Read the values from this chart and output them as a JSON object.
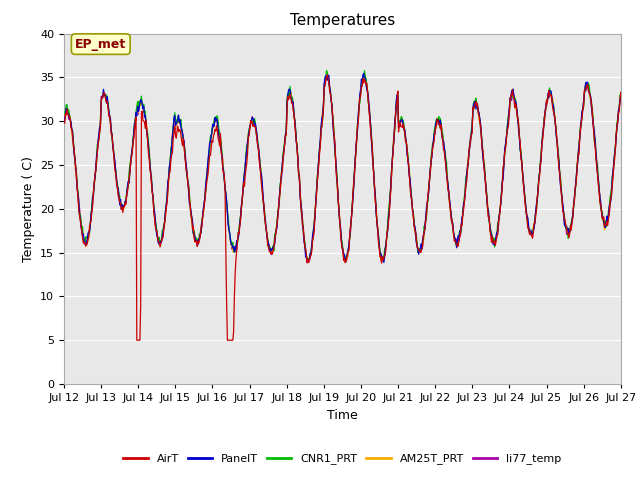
{
  "title": "Temperatures",
  "xlabel": "Time",
  "ylabel": "Temperature (C)",
  "ylim": [
    0,
    40
  ],
  "yticks": [
    0,
    5,
    10,
    15,
    20,
    25,
    30,
    35,
    40
  ],
  "fig_bg_color": "#ffffff",
  "plot_bg_color": "#e8e8e8",
  "series_colors": {
    "AirT": "#cc0000",
    "PanelT": "#0000cc",
    "CNR1_PRT": "#00bb00",
    "AM25T_PRT": "#ffaa00",
    "li77_temp": "#aa00aa"
  },
  "annotation_text": "EP_met",
  "annotation_bg": "#ffffcc",
  "annotation_border": "#999900",
  "annotation_text_color": "#880000",
  "title_fontsize": 11,
  "label_fontsize": 9,
  "tick_fontsize": 8,
  "linewidth": 0.9
}
